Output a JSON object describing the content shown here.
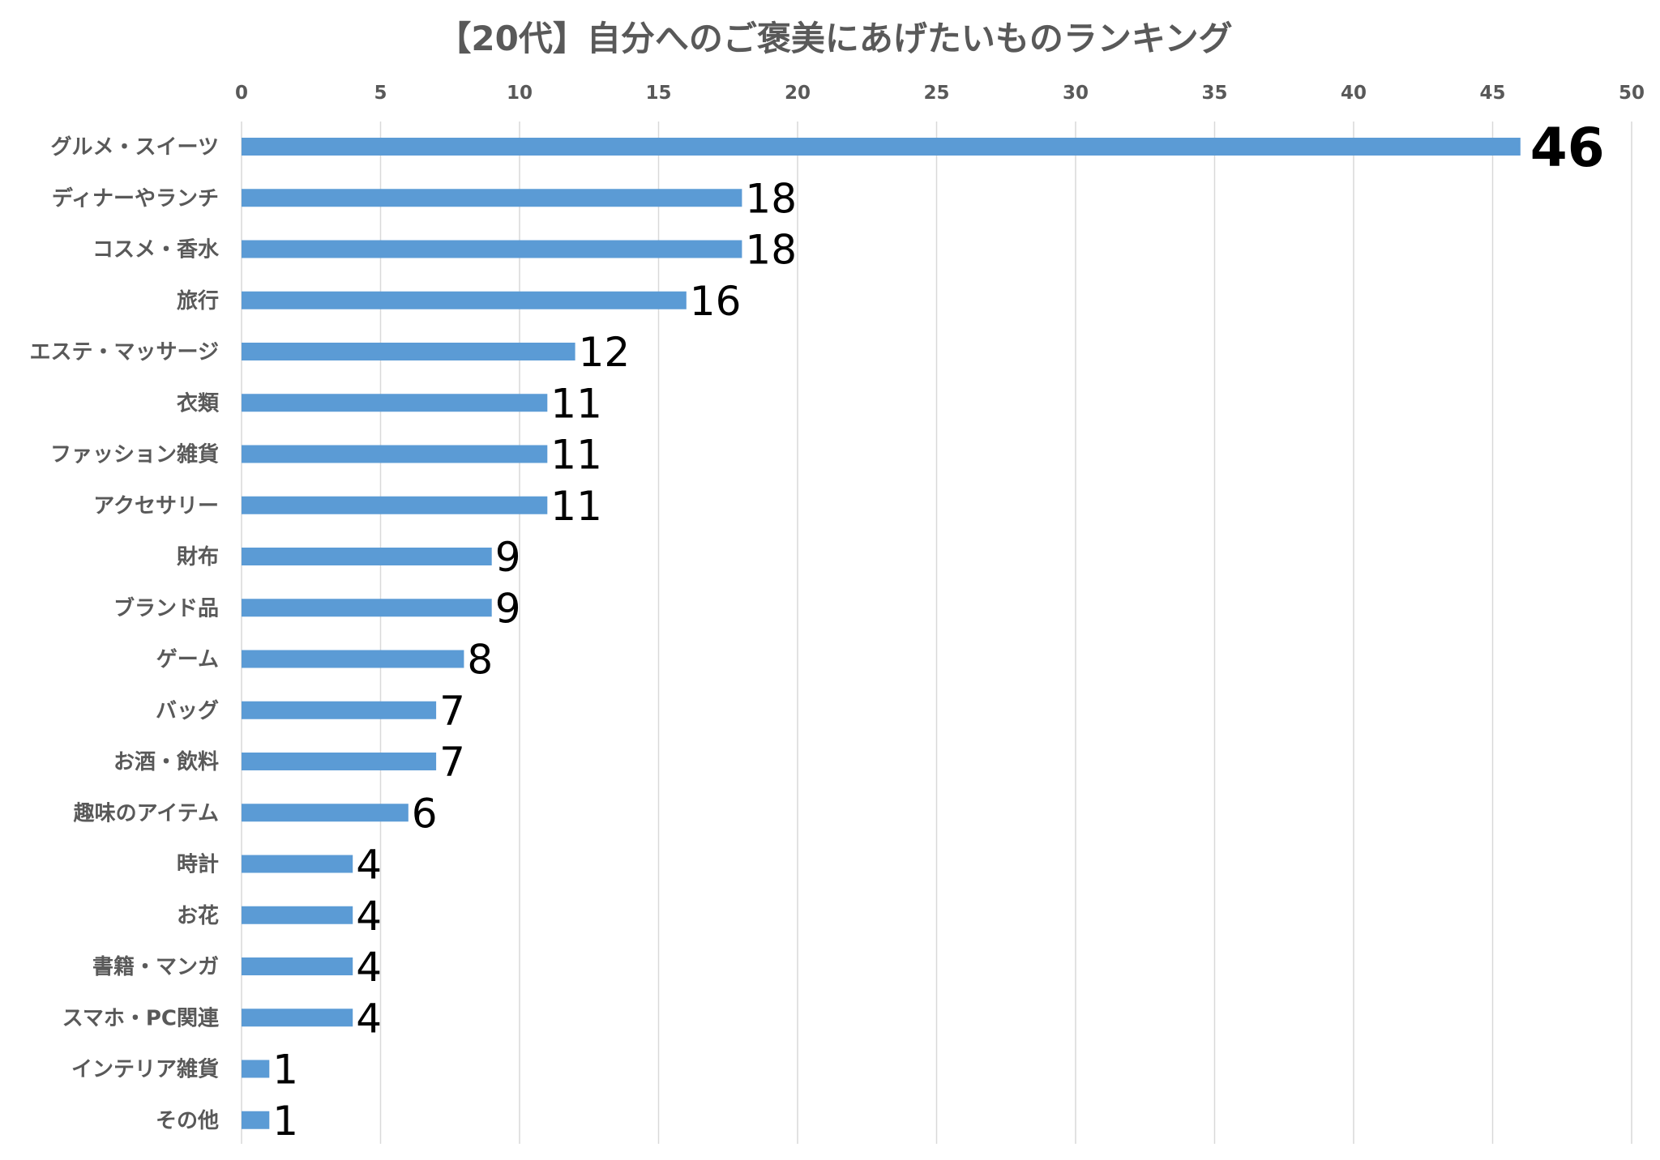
{
  "chart_data": {
    "type": "bar",
    "orientation": "horizontal",
    "title": "【20代】自分へのご褒美にあげたいものランキング",
    "xlabel": "",
    "ylabel": "",
    "xlim": [
      0,
      50
    ],
    "xticks": [
      0,
      5,
      10,
      15,
      20,
      25,
      30,
      35,
      40,
      45,
      50
    ],
    "axis_position": "top",
    "grid": true,
    "bar_color": "#5B9BD5",
    "categories": [
      "グルメ・スイーツ",
      "ディナーやランチ",
      "コスメ・香水",
      "旅行",
      "エステ・マッサージ",
      "衣類",
      "ファッション雑貨",
      "アクセサリー",
      "財布",
      "ブランド品",
      "ゲーム",
      "バッグ",
      "お酒・飲料",
      "趣味のアイテム",
      "時計",
      "お花",
      "書籍・マンガ",
      "スマホ・PC関連",
      "インテリア雑貨",
      "その他"
    ],
    "values": [
      46,
      18,
      18,
      16,
      12,
      11,
      11,
      11,
      9,
      9,
      8,
      7,
      7,
      6,
      4,
      4,
      4,
      4,
      1,
      1
    ],
    "data_labels": [
      "46",
      "18",
      "18",
      "16",
      "12",
      "11",
      "11",
      "11",
      "9",
      "9",
      "8",
      "7",
      "7",
      "6",
      "4",
      "4",
      "4",
      "4",
      "1",
      "1"
    ]
  }
}
